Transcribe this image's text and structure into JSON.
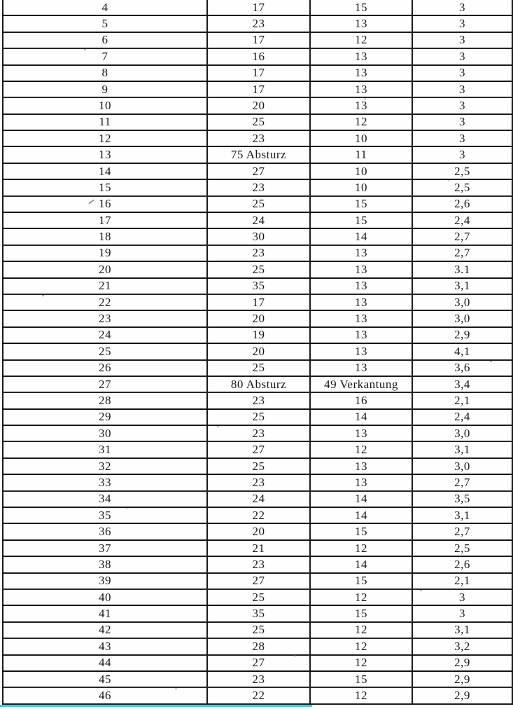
{
  "table": {
    "rows": [
      [
        "4",
        "17",
        "15",
        "3"
      ],
      [
        "5",
        "23",
        "13",
        "3"
      ],
      [
        "6",
        "17",
        "12",
        "3"
      ],
      [
        "7",
        "16",
        "13",
        "3"
      ],
      [
        "8",
        "17",
        "13",
        "3"
      ],
      [
        "9",
        "17",
        "13",
        "3"
      ],
      [
        "10",
        "20",
        "13",
        "3"
      ],
      [
        "11",
        "25",
        "12",
        "3"
      ],
      [
        "12",
        "23",
        "10",
        "3"
      ],
      [
        "13",
        "75 Absturz",
        "11",
        "3"
      ],
      [
        "14",
        "27",
        "10",
        "2,5"
      ],
      [
        "15",
        "23",
        "10",
        "2,5"
      ],
      [
        "16",
        "25",
        "15",
        "2,6"
      ],
      [
        "17",
        "24",
        "15",
        "2,4"
      ],
      [
        "18",
        "30",
        "14",
        "2,7"
      ],
      [
        "19",
        "23",
        "13",
        "2,7"
      ],
      [
        "20",
        "25",
        "13",
        "3.1"
      ],
      [
        "21",
        "35",
        "13",
        "3,1"
      ],
      [
        "22",
        "17",
        "13",
        "3,0"
      ],
      [
        "23",
        "20",
        "13",
        "3,0"
      ],
      [
        "24",
        "19",
        "13",
        "2,9"
      ],
      [
        "25",
        "20",
        "13",
        "4,1"
      ],
      [
        "26",
        "25",
        "13",
        "3,6"
      ],
      [
        "27",
        "80 Absturz",
        "49 Verkantung",
        "3,4"
      ],
      [
        "28",
        "23",
        "16",
        "2,1"
      ],
      [
        "29",
        "25",
        "14",
        "2,4"
      ],
      [
        "30",
        "23",
        "13",
        "3,0"
      ],
      [
        "31",
        "27",
        "12",
        "3,1"
      ],
      [
        "32",
        "25",
        "13",
        "3,0"
      ],
      [
        "33",
        "23",
        "13",
        "2,7"
      ],
      [
        "34",
        "24",
        "14",
        "3,5"
      ],
      [
        "35",
        "22",
        "14",
        "3,1"
      ],
      [
        "36",
        "20",
        "15",
        "2,7"
      ],
      [
        "37",
        "21",
        "12",
        "2,5"
      ],
      [
        "38",
        "23",
        "14",
        "2,6"
      ],
      [
        "39",
        "27",
        "15",
        "2,1"
      ],
      [
        "40",
        "25",
        "12",
        "3"
      ],
      [
        "41",
        "35",
        "15",
        "3"
      ],
      [
        "42",
        "25",
        "12",
        "3,1"
      ],
      [
        "43",
        "28",
        "12",
        "3,2"
      ],
      [
        "44",
        "27",
        "12",
        "2,9"
      ],
      [
        "45",
        "23",
        "15",
        "2,9"
      ],
      [
        "46",
        "22",
        "12",
        "2,9"
      ]
    ]
  },
  "artifacts": {
    "scan_line_color": "#2ad6ea",
    "noise_colors": [
      "#d040d0",
      "#30c090",
      "#d0c030",
      "#4060d0"
    ]
  }
}
